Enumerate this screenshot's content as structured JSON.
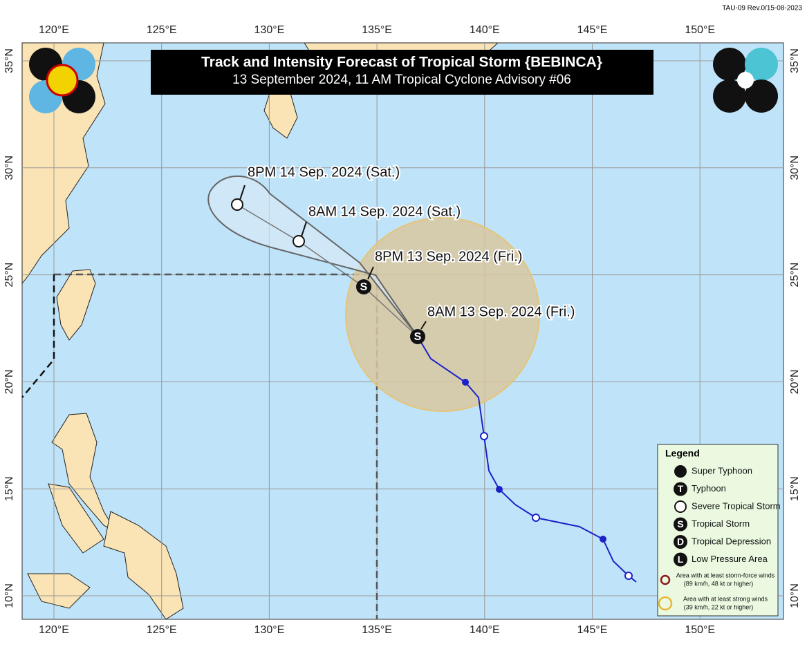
{
  "header": {
    "form_code": "TAU-09 Rev.0/15-08-2023",
    "title": "Track and Intensity Forecast of Tropical Storm {BEBINCA}",
    "subtitle": "13 September 2024, 11 AM Tropical Cyclone Advisory #06"
  },
  "axes": {
    "longitude_labels": [
      "120°E",
      "125°E",
      "130°E",
      "135°E",
      "140°E",
      "145°E",
      "150°E"
    ],
    "latitude_labels": [
      "35°N",
      "30°N",
      "25°N",
      "20°N",
      "15°N",
      "10°N"
    ]
  },
  "forecast_labels": [
    "8PM 14 Sep. 2024 (Sat.)",
    "8AM 14 Sep. 2024 (Sat.)",
    "8PM 13 Sep. 2024 (Fri.)",
    "8AM 13 Sep. 2024 (Fri.)"
  ],
  "legend": {
    "title": "Legend",
    "items": [
      {
        "label": "Super Typhoon"
      },
      {
        "label": "Typhoon",
        "symbol": "T"
      },
      {
        "label": "Severe Tropical Storm"
      },
      {
        "label": "Tropical Storm",
        "symbol": "S"
      },
      {
        "label": "Tropical Depression",
        "symbol": "D"
      },
      {
        "label": "Low Pressure Area",
        "symbol": "L"
      }
    ],
    "wind_areas": [
      {
        "text": "Area with at least storm-force winds",
        "detail": "(89 km/h, 48 kt or higher)"
      },
      {
        "text": "Area with at least strong winds",
        "detail": "(39 km/h, 22 kt or higher)"
      }
    ]
  }
}
